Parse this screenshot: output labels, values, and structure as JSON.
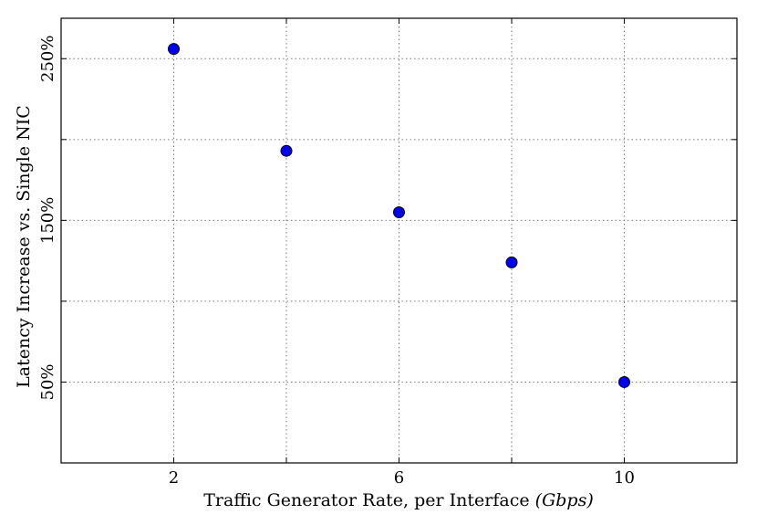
{
  "chart_data": {
    "type": "scatter",
    "title": "",
    "xlabel": "Traffic Generator Rate, per Interface",
    "xlabel_unit": "(Gbps)",
    "ylabel": "Latency Increase vs. Single NIC",
    "xlim": [
      0,
      12
    ],
    "ylim": [
      0,
      275
    ],
    "xticks": [
      2,
      6,
      10
    ],
    "xtick_labels": [
      "2",
      "6",
      "10"
    ],
    "xgrid": [
      2,
      4,
      6,
      8,
      10
    ],
    "yticks": [
      50,
      150,
      250
    ],
    "ytick_labels": [
      "50%",
      "150%",
      "250%"
    ],
    "ygrid": [
      50,
      100,
      150,
      200,
      250
    ],
    "grid": true,
    "marker_color": "#0000ee",
    "x": [
      2,
      4,
      6,
      8,
      10
    ],
    "y": [
      256,
      193,
      155,
      124,
      50
    ]
  }
}
